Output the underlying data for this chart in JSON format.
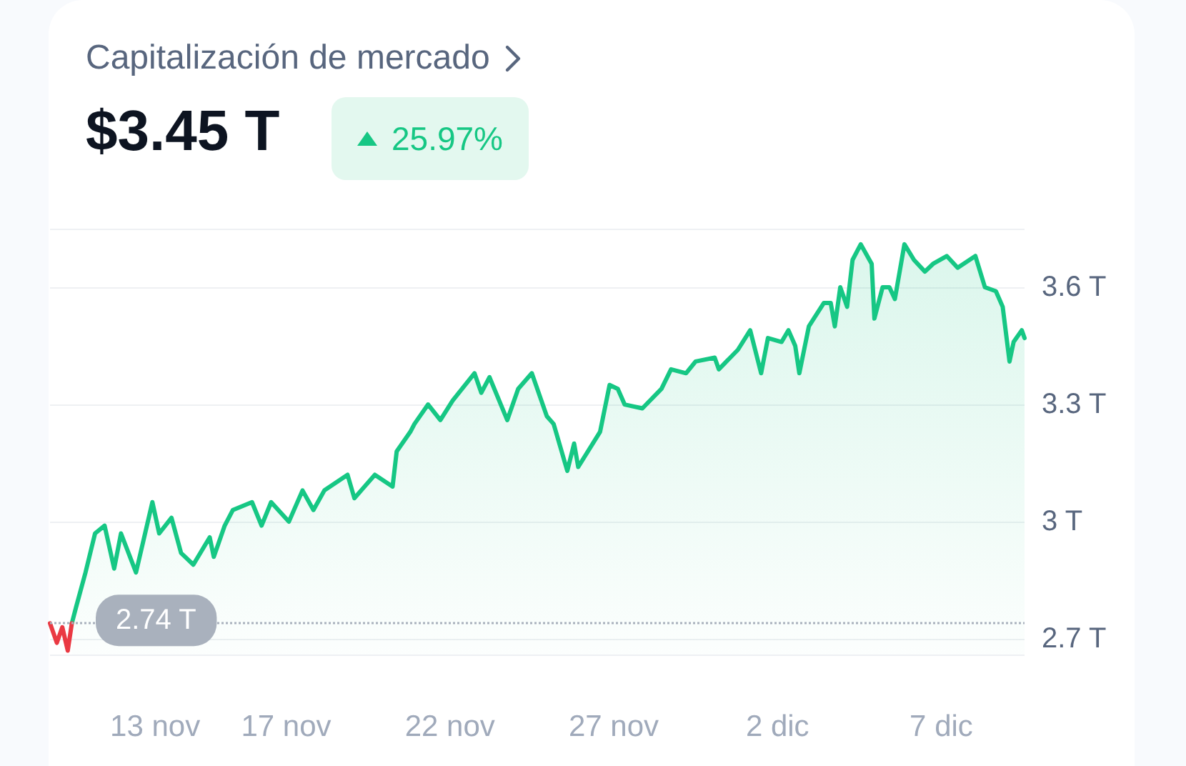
{
  "chart_data": {
    "type": "area",
    "title": "Capitalización de mercado",
    "subtitle": "$3.45 T",
    "annotations": [
      "25.97%"
    ],
    "xlim": [
      "--11-09T19:00",
      "--12-09T13:00"
    ],
    "xticks": [
      {
        "value": "--11-13",
        "label": "13 nov"
      },
      {
        "value": "--11-17",
        "label": "17 nov"
      },
      {
        "value": "--11-22",
        "label": "22 nov"
      },
      {
        "value": "--11-27",
        "label": "27 nov"
      },
      {
        "value": "--12-02",
        "label": "2 dic"
      },
      {
        "value": "--12-07",
        "label": "7 dic"
      }
    ],
    "ylim": [
      2.66,
      3.75
    ],
    "yticks": [
      {
        "value": 2.66,
        "label": null
      },
      {
        "value": 2.7,
        "label": "2.7 T"
      },
      {
        "value": 3,
        "label": "3 T"
      },
      {
        "value": 3.3,
        "label": "3.3 T"
      },
      {
        "value": 3.6,
        "label": "3.6 T"
      },
      {
        "value": 3.75,
        "label": null
      }
    ],
    "grid": "y",
    "marker": "none",
    "line_style": "solid",
    "ref_lines": [
      {
        "axis": "y",
        "value": 2.74,
        "label": "2.74 T",
        "color": "#a9b1bd",
        "line_style": "dotted"
      }
    ],
    "series": [
      {
        "type": "line",
        "color": "#ea3943",
        "x": [
          "--11-09T19:00",
          "--11-10T00:00",
          "--11-10T04:00",
          "--11-10T08:00",
          "--11-10T11:00"
        ],
        "values": [
          2.74,
          2.69,
          2.73,
          2.67,
          2.74
        ]
      },
      {
        "type": "area",
        "color": "#16c784",
        "x": [
          "--11-10T11:00",
          "--11-10T14:00",
          "--11-10T21:00",
          "--11-11T04:00",
          "--11-11T11:00",
          "--11-11T18:00",
          "--11-11T23:00",
          "--11-12T10:00",
          "--11-12T22:00",
          "--11-13T03:00",
          "--11-13T12:00",
          "--11-13T19:00",
          "--11-14T04:00",
          "--11-14T16:00",
          "--11-14T19:00",
          "--11-15T03:00",
          "--11-15T09:00",
          "--11-15T23:00",
          "--11-16T06:00",
          "--11-16T13:00",
          "--11-17T02:00",
          "--11-17T12:00",
          "--11-17T20:00",
          "--11-18T04:00",
          "--11-18T21:00",
          "--11-19T02:00",
          "--11-19T17:00",
          "--11-20T06:00",
          "--11-20T09:00",
          "--11-20T19:00",
          "--11-20T22:00",
          "--11-21T08:00",
          "--11-21T17:00",
          "--11-22T02:00",
          "--11-22T18:00",
          "--11-22T23:00",
          "--11-23T05:00",
          "--11-23T18:00",
          "--11-24T02:00",
          "--11-24T12:00",
          "--11-24T23:00",
          "--11-25T04:00",
          "--11-25T14:00",
          "--11-25T19:00",
          "--11-25T22:00",
          "--11-26T14:00",
          "--11-26T21:00",
          "--11-27T03:00",
          "--11-27T08:00",
          "--11-27T21:00",
          "--11-28T11:00",
          "--11-28T18:00",
          "--11-29T05:00",
          "--11-29T12:00",
          "--11-30T02:00",
          "--11-30T05:00",
          "--11-30T19:00",
          "--12-01T04:00",
          "--12-01T12:00",
          "--12-01T17:00",
          "--12-02T03:00",
          "--12-02T08:00",
          "--12-02T13:00",
          "--12-02T16:00",
          "--12-02T23:00",
          "--12-03T10:00",
          "--12-03T15:00",
          "--12-03T18:00",
          "--12-03T22:00",
          "--12-04T03:00",
          "--12-04T07:00",
          "--12-04T13:00",
          "--12-04T21:00",
          "--12-04T23:00",
          "--12-05T05:00",
          "--12-05T10:00",
          "--12-05T14:00",
          "--12-05T21:00",
          "--12-06T04:00",
          "--12-06T12:00",
          "--12-06T18:00",
          "--12-07T04:00",
          "--12-07T12:00",
          "--12-08T01:00",
          "--12-08T08:00",
          "--12-08T16:00",
          "--12-08T21:00",
          "--12-09T02:00",
          "--12-09T05:00",
          "--12-09T11:00",
          "--12-09T13:00"
        ],
        "values": [
          2.74,
          2.78,
          2.87,
          2.97,
          2.99,
          2.88,
          2.97,
          2.87,
          3.05,
          2.97,
          3.01,
          2.92,
          2.89,
          2.96,
          2.91,
          2.99,
          3.03,
          3.05,
          2.99,
          3.05,
          3.0,
          3.08,
          3.03,
          3.08,
          3.12,
          3.06,
          3.12,
          3.09,
          3.18,
          3.23,
          3.25,
          3.3,
          3.26,
          3.31,
          3.38,
          3.33,
          3.37,
          3.26,
          3.34,
          3.38,
          3.27,
          3.25,
          3.13,
          3.2,
          3.14,
          3.23,
          3.35,
          3.34,
          3.3,
          3.29,
          3.34,
          3.39,
          3.38,
          3.41,
          3.42,
          3.39,
          3.44,
          3.49,
          3.38,
          3.47,
          3.46,
          3.49,
          3.45,
          3.38,
          3.5,
          3.56,
          3.56,
          3.5,
          3.6,
          3.55,
          3.67,
          3.71,
          3.66,
          3.52,
          3.6,
          3.6,
          3.57,
          3.71,
          3.67,
          3.64,
          3.66,
          3.68,
          3.65,
          3.68,
          3.6,
          3.59,
          3.55,
          3.41,
          3.46,
          3.49,
          3.47
        ]
      }
    ]
  }
}
